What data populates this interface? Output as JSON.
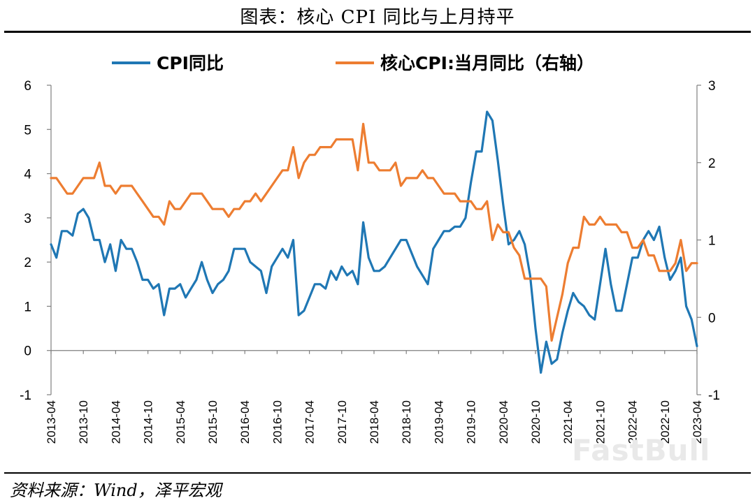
{
  "title": "图表：核心 CPI 同比与上月持平",
  "source": "资料来源：Wind，泽平宏观",
  "watermark": "FastBull",
  "chart_data": {
    "type": "line",
    "legend_position": "top",
    "grid": false,
    "x": [
      "2013-04",
      "2013-05",
      "2013-06",
      "2013-07",
      "2013-08",
      "2013-09",
      "2013-10",
      "2013-11",
      "2013-12",
      "2014-01",
      "2014-02",
      "2014-03",
      "2014-04",
      "2014-05",
      "2014-06",
      "2014-07",
      "2014-08",
      "2014-09",
      "2014-10",
      "2014-11",
      "2014-12",
      "2015-01",
      "2015-02",
      "2015-03",
      "2015-04",
      "2015-05",
      "2015-06",
      "2015-07",
      "2015-08",
      "2015-09",
      "2015-10",
      "2015-11",
      "2015-12",
      "2016-01",
      "2016-02",
      "2016-03",
      "2016-04",
      "2016-05",
      "2016-06",
      "2016-07",
      "2016-08",
      "2016-09",
      "2016-10",
      "2016-11",
      "2016-12",
      "2017-01",
      "2017-02",
      "2017-03",
      "2017-04",
      "2017-05",
      "2017-06",
      "2017-07",
      "2017-08",
      "2017-09",
      "2017-10",
      "2017-11",
      "2017-12",
      "2018-01",
      "2018-02",
      "2018-03",
      "2018-04",
      "2018-05",
      "2018-06",
      "2018-07",
      "2018-08",
      "2018-09",
      "2018-10",
      "2018-11",
      "2018-12",
      "2019-01",
      "2019-02",
      "2019-03",
      "2019-04",
      "2019-05",
      "2019-06",
      "2019-07",
      "2019-08",
      "2019-09",
      "2019-10",
      "2019-11",
      "2019-12",
      "2020-01",
      "2020-02",
      "2020-03",
      "2020-04",
      "2020-05",
      "2020-06",
      "2020-07",
      "2020-08",
      "2020-09",
      "2020-10",
      "2020-11",
      "2020-12",
      "2021-01",
      "2021-02",
      "2021-03",
      "2021-04",
      "2021-05",
      "2021-06",
      "2021-07",
      "2021-08",
      "2021-09",
      "2021-10",
      "2021-11",
      "2021-12",
      "2022-01",
      "2022-02",
      "2022-03",
      "2022-04",
      "2022-05",
      "2022-06",
      "2022-07",
      "2022-08",
      "2022-09",
      "2022-10",
      "2022-11",
      "2022-12",
      "2023-01",
      "2023-02",
      "2023-03",
      "2023-04"
    ],
    "x_tick_labels": [
      "2013-04",
      "2013-10",
      "2014-04",
      "2014-10",
      "2015-04",
      "2015-10",
      "2016-04",
      "2016-10",
      "2017-04",
      "2017-10",
      "2018-04",
      "2018-10",
      "2019-04",
      "2019-10",
      "2020-04",
      "2020-10",
      "2021-04",
      "2021-10",
      "2022-04",
      "2022-10",
      "2023-04"
    ],
    "y_left": {
      "range": [
        -1,
        6
      ],
      "ticks": [
        -1,
        0,
        1,
        2,
        3,
        4,
        5,
        6
      ]
    },
    "y_right": {
      "range": [
        -1,
        3
      ],
      "ticks": [
        -1,
        0,
        1,
        2,
        3
      ]
    },
    "series": [
      {
        "name": "CPI同比",
        "axis": "left",
        "color": "#1f77b4",
        "values": [
          2.4,
          2.1,
          2.7,
          2.7,
          2.6,
          3.1,
          3.2,
          3.0,
          2.5,
          2.5,
          2.0,
          2.4,
          1.8,
          2.5,
          2.3,
          2.3,
          2.0,
          1.6,
          1.6,
          1.4,
          1.5,
          0.8,
          1.4,
          1.4,
          1.5,
          1.2,
          1.4,
          1.6,
          2.0,
          1.6,
          1.3,
          1.5,
          1.6,
          1.8,
          2.3,
          2.3,
          2.3,
          2.0,
          1.9,
          1.8,
          1.3,
          1.9,
          2.1,
          2.3,
          2.1,
          2.5,
          0.8,
          0.9,
          1.2,
          1.5,
          1.5,
          1.4,
          1.8,
          1.6,
          1.9,
          1.7,
          1.8,
          1.5,
          2.9,
          2.1,
          1.8,
          1.8,
          1.9,
          2.1,
          2.3,
          2.5,
          2.5,
          2.2,
          1.9,
          1.7,
          1.5,
          2.3,
          2.5,
          2.7,
          2.7,
          2.8,
          2.8,
          3.0,
          3.8,
          4.5,
          4.5,
          5.4,
          5.2,
          4.3,
          3.3,
          2.4,
          2.5,
          2.7,
          2.4,
          1.7,
          0.5,
          -0.5,
          0.2,
          -0.3,
          -0.2,
          0.4,
          0.9,
          1.3,
          1.1,
          1.0,
          0.8,
          0.7,
          1.5,
          2.3,
          1.5,
          0.9,
          0.9,
          1.5,
          2.1,
          2.1,
          2.5,
          2.7,
          2.5,
          2.8,
          2.1,
          1.6,
          1.8,
          2.1,
          1.0,
          0.7,
          0.1
        ]
      },
      {
        "name": "核心CPI:当月同比（右轴）",
        "axis": "right",
        "color": "#ed7d31",
        "values": [
          1.8,
          1.8,
          1.7,
          1.6,
          1.6,
          1.7,
          1.8,
          1.8,
          1.8,
          2.0,
          1.7,
          1.7,
          1.6,
          1.7,
          1.7,
          1.7,
          1.6,
          1.5,
          1.4,
          1.3,
          1.3,
          1.2,
          1.5,
          1.4,
          1.4,
          1.5,
          1.6,
          1.6,
          1.6,
          1.5,
          1.4,
          1.4,
          1.4,
          1.3,
          1.4,
          1.4,
          1.5,
          1.5,
          1.6,
          1.5,
          1.6,
          1.7,
          1.8,
          1.9,
          1.9,
          2.2,
          1.8,
          2.0,
          2.1,
          2.1,
          2.2,
          2.2,
          2.2,
          2.3,
          2.3,
          2.3,
          2.3,
          1.9,
          2.5,
          2.0,
          2.0,
          1.9,
          1.9,
          1.9,
          2.0,
          1.7,
          1.8,
          1.8,
          1.8,
          1.9,
          1.8,
          1.8,
          1.7,
          1.6,
          1.6,
          1.6,
          1.5,
          1.5,
          1.5,
          1.4,
          1.4,
          1.5,
          1.0,
          1.2,
          1.1,
          1.1,
          0.9,
          0.8,
          0.5,
          0.5,
          0.5,
          0.5,
          0.4,
          -0.3,
          0.0,
          0.3,
          0.7,
          0.9,
          0.9,
          1.3,
          1.2,
          1.2,
          1.3,
          1.2,
          1.2,
          1.2,
          1.1,
          1.1,
          0.9,
          0.9,
          1.0,
          0.8,
          0.8,
          0.6,
          0.6,
          0.6,
          0.7,
          1.0,
          0.6,
          0.7,
          0.7
        ]
      }
    ]
  }
}
